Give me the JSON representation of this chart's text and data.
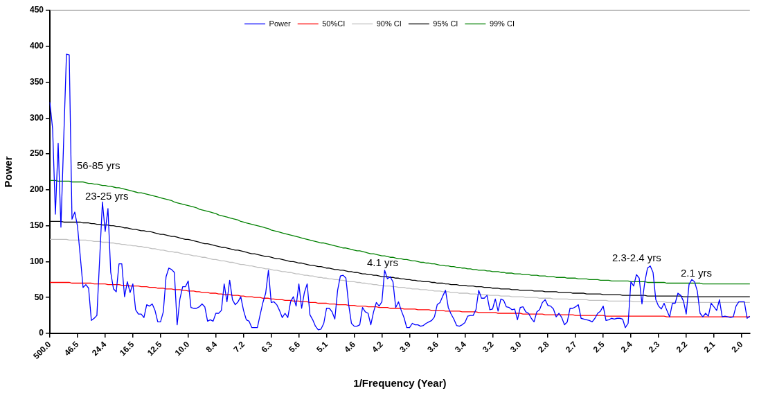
{
  "chart_data": {
    "type": "line",
    "xlabel": "1/Frequency (Year)",
    "ylabel": "Power",
    "legend": "top",
    "ylim": [
      0,
      450
    ],
    "yticks": [
      0,
      50,
      100,
      150,
      200,
      250,
      300,
      350,
      400,
      450
    ],
    "categories": [
      "500.0",
      null,
      null,
      null,
      null,
      null,
      null,
      null,
      null,
      null,
      "46.5",
      null,
      null,
      null,
      null,
      null,
      null,
      null,
      null,
      null,
      "24.4",
      null,
      null,
      null,
      null,
      null,
      null,
      null,
      null,
      null,
      "16.5",
      null,
      null,
      null,
      null,
      null,
      null,
      null,
      null,
      null,
      "12.5",
      null,
      null,
      null,
      null,
      null,
      null,
      null,
      null,
      null,
      "10.0",
      null,
      null,
      null,
      null,
      null,
      null,
      null,
      null,
      null,
      "8.4",
      null,
      null,
      null,
      null,
      null,
      null,
      null,
      null,
      null,
      "7.2",
      null,
      null,
      null,
      null,
      null,
      null,
      null,
      null,
      null,
      "6.3",
      null,
      null,
      null,
      null,
      null,
      null,
      null,
      null,
      null,
      "5.6",
      null,
      null,
      null,
      null,
      null,
      null,
      null,
      null,
      null,
      "5.1",
      null,
      null,
      null,
      null,
      null,
      null,
      null,
      null,
      null,
      "4.6",
      null,
      null,
      null,
      null,
      null,
      null,
      null,
      null,
      null,
      "4.2",
      null,
      null,
      null,
      null,
      null,
      null,
      null,
      null,
      null,
      "3.9",
      null,
      null,
      null,
      null,
      null,
      null,
      null,
      null,
      null,
      "3.6",
      null,
      null,
      null,
      null,
      null,
      null,
      null,
      null,
      null,
      "3.4",
      null,
      null,
      null,
      null,
      null,
      null,
      null,
      null,
      null,
      "3.2",
      null,
      null,
      null,
      null,
      null,
      null,
      null,
      null,
      null,
      "3.0",
      null,
      null,
      null,
      null,
      null,
      null,
      null,
      null,
      null,
      "2.8",
      null,
      null,
      null,
      null,
      null,
      null,
      null,
      null,
      null,
      "2.7",
      null,
      null,
      null,
      null,
      null,
      null,
      null,
      null,
      null,
      "2.5",
      null,
      null,
      null,
      null,
      null,
      null,
      null,
      null,
      null,
      "2.4",
      null,
      null,
      null,
      null,
      null,
      null,
      null,
      null,
      null,
      "2.3",
      null,
      null,
      null,
      null,
      null,
      null,
      null,
      null,
      null,
      "2.2",
      null,
      null,
      null,
      null,
      null,
      null,
      null,
      null,
      null,
      "2.1",
      null,
      null,
      null,
      null,
      null,
      null,
      null,
      null,
      null,
      "2.0",
      null,
      null,
      null
    ],
    "series": [
      {
        "name": "Power",
        "color": "#0000ff",
        "values": [
          322,
          285,
          166,
          265,
          148,
          270,
          389,
          388,
          159,
          169,
          149,
          107,
          64,
          68,
          63,
          18,
          21,
          25,
          104,
          183,
          142,
          174,
          85,
          62,
          58,
          97,
          97,
          51,
          72,
          57,
          69,
          33,
          27,
          27,
          22,
          40,
          38,
          41,
          32,
          16,
          16,
          30,
          79,
          91,
          89,
          85,
          12,
          48,
          65,
          65,
          73,
          36,
          35,
          35,
          37,
          41,
          37,
          17,
          19,
          17,
          28,
          28,
          32,
          69,
          44,
          74,
          47,
          40,
          44,
          51,
          32,
          19,
          17,
          8,
          8,
          8,
          26,
          43,
          56,
          88,
          43,
          44,
          40,
          32,
          22,
          28,
          22,
          44,
          51,
          38,
          69,
          35,
          57,
          69,
          26,
          19,
          10,
          5,
          6,
          14,
          35,
          35,
          30,
          20,
          60,
          80,
          81,
          77,
          40,
          14,
          10,
          10,
          12,
          36,
          30,
          28,
          12,
          30,
          43,
          38,
          44,
          88,
          76,
          79,
          72,
          36,
          44,
          32,
          22,
          8,
          8,
          14,
          12,
          12,
          10,
          11,
          14,
          16,
          18,
          23,
          40,
          43,
          52,
          60,
          36,
          27,
          20,
          11,
          10,
          12,
          15,
          24,
          25,
          25,
          33,
          60,
          49,
          49,
          53,
          33,
          34,
          48,
          31,
          48,
          46,
          37,
          36,
          33,
          34,
          19,
          36,
          37,
          30,
          28,
          21,
          16,
          30,
          33,
          43,
          47,
          39,
          38,
          34,
          23,
          28,
          22,
          12,
          16,
          35,
          35,
          37,
          40,
          21,
          20,
          19,
          18,
          16,
          21,
          28,
          31,
          38,
          18,
          19,
          21,
          20,
          21,
          21,
          20,
          8,
          14,
          72,
          66,
          82,
          77,
          41,
          71,
          91,
          94,
          85,
          47,
          38,
          34,
          42,
          32,
          23,
          42,
          42,
          56,
          53,
          45,
          27,
          68,
          75,
          72,
          59,
          28,
          23,
          28,
          24,
          42,
          37,
          32,
          47,
          23,
          24,
          23,
          22,
          23,
          38,
          44,
          44,
          44,
          21,
          24
        ]
      },
      {
        "name": "50%CI",
        "color": "#ff0000",
        "values": [
          71,
          71,
          71,
          71,
          71,
          71,
          71,
          71,
          70,
          70,
          70,
          70,
          70,
          70,
          70,
          70,
          69,
          69,
          69,
          69,
          69,
          68,
          68,
          68,
          68,
          68,
          67,
          67,
          67,
          66,
          66,
          66,
          66,
          65,
          65,
          65,
          64,
          64,
          64,
          63,
          63,
          63,
          62,
          62,
          62,
          61,
          61,
          61,
          60,
          60,
          59,
          59,
          59,
          58,
          58,
          57,
          57,
          57,
          56,
          56,
          56,
          55,
          55,
          54,
          54,
          54,
          53,
          53,
          53,
          52,
          52,
          51,
          51,
          51,
          50,
          50,
          50,
          49,
          49,
          49,
          48,
          48,
          47,
          47,
          47,
          46,
          46,
          46,
          45,
          45,
          45,
          44,
          44,
          44,
          43,
          43,
          43,
          42,
          42,
          42,
          42,
          41,
          41,
          41,
          40,
          40,
          40,
          40,
          39,
          39,
          39,
          38,
          38,
          38,
          38,
          37,
          37,
          37,
          37,
          36,
          36,
          36,
          36,
          35,
          35,
          35,
          35,
          35,
          34,
          34,
          34,
          34,
          34,
          33,
          33,
          33,
          33,
          33,
          32,
          32,
          32,
          32,
          32,
          31,
          31,
          31,
          31,
          31,
          31,
          30,
          30,
          30,
          30,
          30,
          30,
          29,
          29,
          29,
          29,
          29,
          29,
          29,
          28,
          28,
          28,
          28,
          28,
          28,
          28,
          28,
          28,
          27,
          27,
          27,
          27,
          27,
          27,
          27,
          27,
          26,
          26,
          26,
          26,
          26,
          26,
          26,
          26,
          26,
          26,
          26,
          25,
          25,
          25,
          25,
          25,
          25,
          25,
          25,
          25,
          25,
          25,
          24,
          24,
          24,
          24,
          24,
          24,
          24,
          24,
          24,
          24,
          24,
          24,
          24,
          24,
          24,
          24,
          24,
          24,
          24,
          24,
          24,
          24,
          23,
          23,
          23,
          23,
          23,
          23,
          23,
          23,
          23,
          23,
          23,
          23,
          23,
          23,
          23,
          23,
          23,
          23,
          23,
          23,
          23,
          23,
          23,
          23,
          23,
          23,
          23,
          23,
          23,
          23,
          23
        ]
      },
      {
        "name": "90% CI",
        "color": "#c0c0c0",
        "values": [
          131,
          131,
          131,
          131,
          131,
          131,
          131,
          130,
          130,
          130,
          130,
          130,
          130,
          130,
          129,
          129,
          128,
          128,
          128,
          127,
          127,
          127,
          126,
          126,
          125,
          125,
          124,
          124,
          123,
          123,
          122,
          122,
          121,
          121,
          120,
          120,
          119,
          118,
          118,
          117,
          116,
          116,
          115,
          114,
          114,
          113,
          113,
          112,
          111,
          110,
          110,
          109,
          108,
          108,
          107,
          106,
          106,
          105,
          104,
          103,
          103,
          102,
          101,
          101,
          100,
          99,
          99,
          98,
          97,
          96,
          96,
          95,
          94,
          94,
          93,
          92,
          92,
          91,
          90,
          90,
          89,
          88,
          88,
          87,
          86,
          86,
          85,
          85,
          84,
          83,
          83,
          82,
          81,
          81,
          80,
          80,
          79,
          78,
          78,
          77,
          77,
          76,
          76,
          75,
          75,
          74,
          74,
          73,
          72,
          72,
          72,
          71,
          71,
          70,
          70,
          69,
          69,
          68,
          68,
          67,
          67,
          66,
          66,
          66,
          65,
          65,
          64,
          64,
          64,
          63,
          63,
          62,
          62,
          62,
          61,
          61,
          61,
          60,
          60,
          59,
          59,
          59,
          58,
          58,
          58,
          57,
          57,
          57,
          56,
          56,
          56,
          56,
          55,
          55,
          55,
          54,
          54,
          54,
          54,
          53,
          53,
          53,
          53,
          52,
          52,
          52,
          52,
          51,
          51,
          51,
          51,
          51,
          50,
          50,
          50,
          50,
          50,
          49,
          49,
          49,
          49,
          49,
          48,
          48,
          48,
          48,
          48,
          48,
          47,
          47,
          47,
          47,
          47,
          47,
          47,
          46,
          46,
          46,
          46,
          46,
          46,
          46,
          45,
          45,
          45,
          45,
          45,
          45,
          45,
          45,
          45,
          44,
          44,
          44,
          44,
          44,
          44,
          44,
          44,
          44,
          44,
          44,
          44,
          43,
          43,
          43,
          43,
          43,
          43,
          43,
          43,
          43,
          43,
          43,
          43,
          43,
          43,
          43,
          43,
          43,
          43,
          43,
          43,
          43,
          43,
          43,
          43,
          43,
          43,
          43,
          43,
          43,
          43,
          43
        ]
      },
      {
        "name": "95% CI",
        "color": "#000000",
        "values": [
          156,
          156,
          156,
          156,
          156,
          155,
          155,
          155,
          155,
          155,
          155,
          155,
          154,
          154,
          154,
          153,
          153,
          152,
          152,
          151,
          151,
          151,
          150,
          150,
          149,
          149,
          148,
          147,
          147,
          146,
          145,
          145,
          144,
          143,
          143,
          142,
          142,
          141,
          140,
          139,
          138,
          138,
          137,
          136,
          135,
          135,
          134,
          133,
          132,
          131,
          131,
          130,
          129,
          128,
          127,
          126,
          125,
          125,
          124,
          123,
          122,
          121,
          120,
          120,
          119,
          118,
          117,
          116,
          116,
          115,
          114,
          113,
          112,
          111,
          111,
          110,
          109,
          108,
          107,
          107,
          106,
          105,
          104,
          104,
          103,
          102,
          101,
          100,
          100,
          99,
          98,
          98,
          97,
          96,
          95,
          95,
          94,
          93,
          93,
          92,
          91,
          91,
          90,
          89,
          89,
          88,
          88,
          87,
          86,
          86,
          85,
          85,
          84,
          83,
          83,
          82,
          82,
          81,
          81,
          80,
          79,
          79,
          79,
          78,
          78,
          77,
          77,
          76,
          76,
          75,
          75,
          74,
          74,
          73,
          73,
          72,
          72,
          72,
          71,
          71,
          70,
          70,
          70,
          69,
          69,
          68,
          68,
          68,
          67,
          67,
          67,
          66,
          66,
          66,
          65,
          65,
          65,
          64,
          64,
          64,
          63,
          63,
          63,
          62,
          62,
          62,
          62,
          61,
          61,
          61,
          60,
          60,
          60,
          60,
          60,
          59,
          59,
          59,
          59,
          58,
          58,
          58,
          58,
          58,
          57,
          57,
          57,
          57,
          57,
          56,
          56,
          56,
          56,
          56,
          55,
          55,
          55,
          55,
          55,
          55,
          54,
          54,
          54,
          54,
          54,
          54,
          54,
          53,
          53,
          53,
          53,
          53,
          53,
          53,
          53,
          53,
          52,
          52,
          52,
          52,
          52,
          52,
          52,
          52,
          52,
          52,
          52,
          52,
          52,
          51,
          51,
          51,
          51,
          51,
          51,
          51,
          51,
          51,
          51,
          51,
          51,
          51,
          51,
          51,
          51,
          51,
          51,
          51,
          51,
          51,
          51,
          51,
          51,
          51
        ]
      },
      {
        "name": "99% CI",
        "color": "#008000",
        "values": [
          213,
          213,
          213,
          212,
          212,
          212,
          212,
          212,
          211,
          211,
          211,
          211,
          211,
          210,
          209,
          209,
          208,
          208,
          207,
          206,
          206,
          205,
          205,
          204,
          203,
          203,
          202,
          201,
          200,
          199,
          198,
          197,
          196,
          196,
          195,
          194,
          193,
          192,
          191,
          190,
          189,
          188,
          187,
          186,
          185,
          183,
          182,
          181,
          180,
          179,
          178,
          177,
          176,
          175,
          173,
          172,
          171,
          170,
          169,
          168,
          167,
          165,
          164,
          163,
          162,
          161,
          160,
          159,
          158,
          156,
          155,
          154,
          153,
          152,
          151,
          150,
          149,
          148,
          147,
          146,
          144,
          143,
          142,
          141,
          140,
          139,
          138,
          137,
          136,
          135,
          134,
          133,
          132,
          131,
          130,
          129,
          128,
          127,
          126,
          126,
          125,
          124,
          123,
          122,
          121,
          120,
          119,
          119,
          118,
          117,
          116,
          115,
          115,
          114,
          113,
          112,
          111,
          111,
          110,
          109,
          108,
          108,
          107,
          106,
          106,
          105,
          104,
          104,
          103,
          103,
          102,
          101,
          101,
          100,
          99,
          99,
          98,
          98,
          97,
          97,
          96,
          95,
          95,
          94,
          94,
          93,
          93,
          92,
          92,
          91,
          91,
          90,
          90,
          89,
          89,
          88,
          88,
          88,
          87,
          87,
          86,
          86,
          86,
          85,
          85,
          84,
          84,
          84,
          83,
          83,
          83,
          82,
          82,
          82,
          81,
          81,
          81,
          80,
          80,
          80,
          79,
          79,
          79,
          78,
          78,
          78,
          78,
          77,
          77,
          77,
          77,
          76,
          76,
          76,
          76,
          75,
          75,
          75,
          75,
          74,
          74,
          74,
          74,
          73,
          73,
          73,
          73,
          73,
          73,
          73,
          72,
          72,
          72,
          72,
          72,
          72,
          71,
          71,
          71,
          71,
          71,
          71,
          71,
          70,
          70,
          70,
          70,
          70,
          70,
          70,
          70,
          70,
          70,
          70,
          70,
          70,
          69,
          69,
          69,
          69,
          69,
          69,
          69,
          69,
          69,
          69,
          69,
          69,
          69,
          69,
          69,
          69,
          69,
          69
        ]
      }
    ],
    "annotations": [
      "56-85 yrs",
      "23-25 yrs",
      "4.1 yrs",
      "2.3-2.4 yrs",
      "2.1 yrs"
    ]
  }
}
